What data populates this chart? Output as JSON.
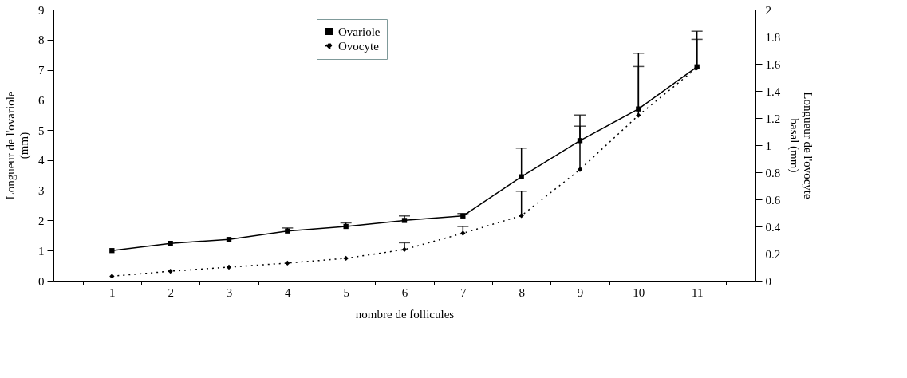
{
  "chart_data": {
    "type": "line",
    "xlabel": "nombre de follicules",
    "ylabel": "Longueur de l'ovariole\n(mm)",
    "y2label": "Longueur de l'ovocyte\nbasal (mm)",
    "categories": [
      "1",
      "2",
      "3",
      "4",
      "5",
      "6",
      "7",
      "8",
      "9",
      "10",
      "11"
    ],
    "ylim": [
      0,
      9
    ],
    "yticks": [
      0,
      1,
      2,
      3,
      4,
      5,
      6,
      7,
      8,
      9
    ],
    "y2lim": [
      0,
      2
    ],
    "y2ticks": [
      0,
      0.2,
      0.4,
      0.6,
      0.8,
      1,
      1.2,
      1.4,
      1.6,
      1.8,
      2
    ],
    "legend": "top",
    "grid": false,
    "series": [
      {
        "name": "Ovariole",
        "color": "#000000",
        "marker": "square",
        "line_style": "solid",
        "values": [
          1.0,
          1.24,
          1.37,
          1.65,
          1.8,
          2.0,
          2.15,
          3.45,
          4.65,
          5.7,
          7.1
        ],
        "errors": [
          null,
          null,
          null,
          [
            1.65,
            1.75
          ],
          [
            1.8,
            1.92
          ],
          [
            2.0,
            2.15
          ],
          [
            2.15,
            2.23
          ],
          [
            3.45,
            4.4
          ],
          [
            4.65,
            5.5
          ],
          [
            5.7,
            7.55
          ],
          [
            7.1,
            8.28
          ]
        ]
      },
      {
        "name": "Ovocyte",
        "color": "#000000",
        "marker": "diamond",
        "line_style": "dotted",
        "axis": "y2",
        "values": [
          0.033,
          0.07,
          0.1,
          0.13,
          0.165,
          0.23,
          0.35,
          0.48,
          0.82,
          1.22,
          1.57
        ],
        "errors": [
          null,
          null,
          null,
          null,
          null,
          [
            0.23,
            0.28
          ],
          [
            0.35,
            0.4
          ],
          [
            0.48,
            0.66
          ],
          [
            0.82,
            1.14
          ],
          [
            1.22,
            1.58
          ],
          [
            1.57,
            1.78
          ]
        ]
      }
    ]
  }
}
